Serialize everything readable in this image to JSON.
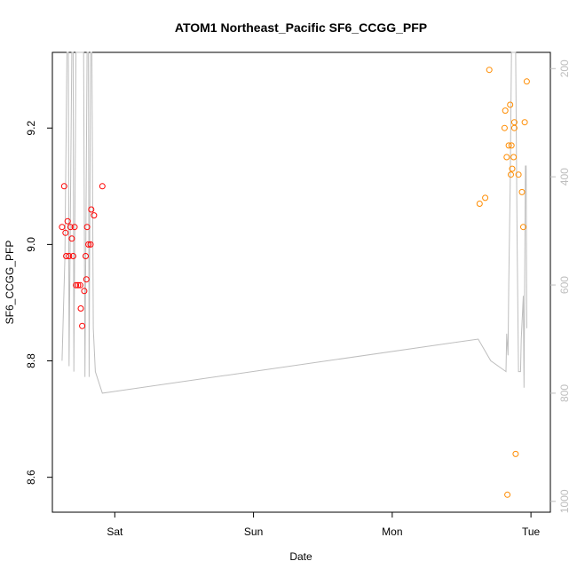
{
  "chart_data": {
    "type": "scatter",
    "title": "ATOM1 Northeast_Pacific SF6_CCGG_PFP",
    "xlabel": "Date",
    "ylabel": "SF6_CCGG_PFP",
    "x_ticks": [
      {
        "label": "Sat",
        "value": 1.0
      },
      {
        "label": "Sun",
        "value": 2.0
      },
      {
        "label": "Mon",
        "value": 3.0
      },
      {
        "label": "Tue",
        "value": 4.0
      }
    ],
    "xlim": [
      0.55,
      4.14
    ],
    "ylim": [
      8.54,
      9.33
    ],
    "y_ticks": [
      8.6,
      8.8,
      9.0,
      9.2
    ],
    "y2lim": [
      1020,
      170
    ],
    "y2_ticks": [
      200,
      400,
      600,
      800,
      1000
    ],
    "colors": {
      "series1": "#ff0000",
      "series2": "#ff8c00",
      "altitude": "#bebebe"
    },
    "series": [
      {
        "color_key": "series1",
        "points": [
          [
            0.62,
            9.03
          ],
          [
            0.635,
            9.1
          ],
          [
            0.645,
            9.02
          ],
          [
            0.65,
            8.98
          ],
          [
            0.66,
            9.04
          ],
          [
            0.67,
            8.98
          ],
          [
            0.68,
            9.03
          ],
          [
            0.69,
            9.01
          ],
          [
            0.7,
            8.98
          ],
          [
            0.71,
            9.03
          ],
          [
            0.72,
            8.93
          ],
          [
            0.735,
            8.93
          ],
          [
            0.75,
            8.93
          ],
          [
            0.755,
            8.89
          ],
          [
            0.765,
            8.86
          ],
          [
            0.78,
            8.92
          ],
          [
            0.79,
            8.98
          ],
          [
            0.795,
            8.94
          ],
          [
            0.8,
            9.03
          ],
          [
            0.81,
            9.0
          ],
          [
            0.825,
            9.0
          ],
          [
            0.83,
            9.06
          ],
          [
            0.85,
            9.05
          ],
          [
            0.91,
            9.1
          ]
        ]
      },
      {
        "color_key": "series2",
        "points": [
          [
            3.63,
            9.07
          ],
          [
            3.67,
            9.08
          ],
          [
            3.7,
            9.3
          ],
          [
            3.81,
            9.2
          ],
          [
            3.815,
            9.23
          ],
          [
            3.825,
            9.15
          ],
          [
            3.84,
            9.17
          ],
          [
            3.85,
            9.24
          ],
          [
            3.855,
            9.12
          ],
          [
            3.86,
            9.17
          ],
          [
            3.865,
            9.13
          ],
          [
            3.875,
            9.15
          ],
          [
            3.88,
            9.21
          ],
          [
            3.88,
            9.2
          ],
          [
            3.89,
            8.64
          ],
          [
            3.91,
            9.12
          ],
          [
            3.935,
            9.09
          ],
          [
            3.945,
            9.03
          ],
          [
            3.955,
            9.21
          ],
          [
            3.97,
            9.28
          ],
          [
            3.83,
            8.57
          ]
        ]
      }
    ],
    "altitude_line": [
      [
        0.62,
        740
      ],
      [
        0.64,
        550
      ],
      [
        0.655,
        170
      ],
      [
        0.665,
        170
      ],
      [
        0.67,
        750
      ],
      [
        0.69,
        170
      ],
      [
        0.7,
        170
      ],
      [
        0.705,
        760
      ],
      [
        0.72,
        170
      ],
      [
        0.73,
        170
      ],
      [
        0.75,
        170
      ],
      [
        0.765,
        170
      ],
      [
        0.775,
        170
      ],
      [
        0.785,
        770
      ],
      [
        0.8,
        170
      ],
      [
        0.81,
        170
      ],
      [
        0.815,
        770
      ],
      [
        0.825,
        170
      ],
      [
        0.835,
        170
      ],
      [
        0.845,
        680
      ],
      [
        0.86,
        760
      ],
      [
        0.91,
        800
      ],
      [
        3.62,
        700
      ],
      [
        3.71,
        740
      ],
      [
        3.82,
        760
      ],
      [
        3.825,
        690
      ],
      [
        3.835,
        730
      ],
      [
        3.84,
        600
      ],
      [
        3.85,
        420
      ],
      [
        3.86,
        170
      ],
      [
        3.87,
        170
      ],
      [
        3.875,
        170
      ],
      [
        3.88,
        170
      ],
      [
        3.89,
        170
      ],
      [
        3.9,
        510
      ],
      [
        3.91,
        760
      ],
      [
        3.925,
        760
      ],
      [
        3.93,
        700
      ],
      [
        3.945,
        620
      ],
      [
        3.95,
        790
      ],
      [
        3.96,
        380
      ],
      [
        3.965,
        380
      ],
      [
        3.97,
        680
      ]
    ]
  }
}
